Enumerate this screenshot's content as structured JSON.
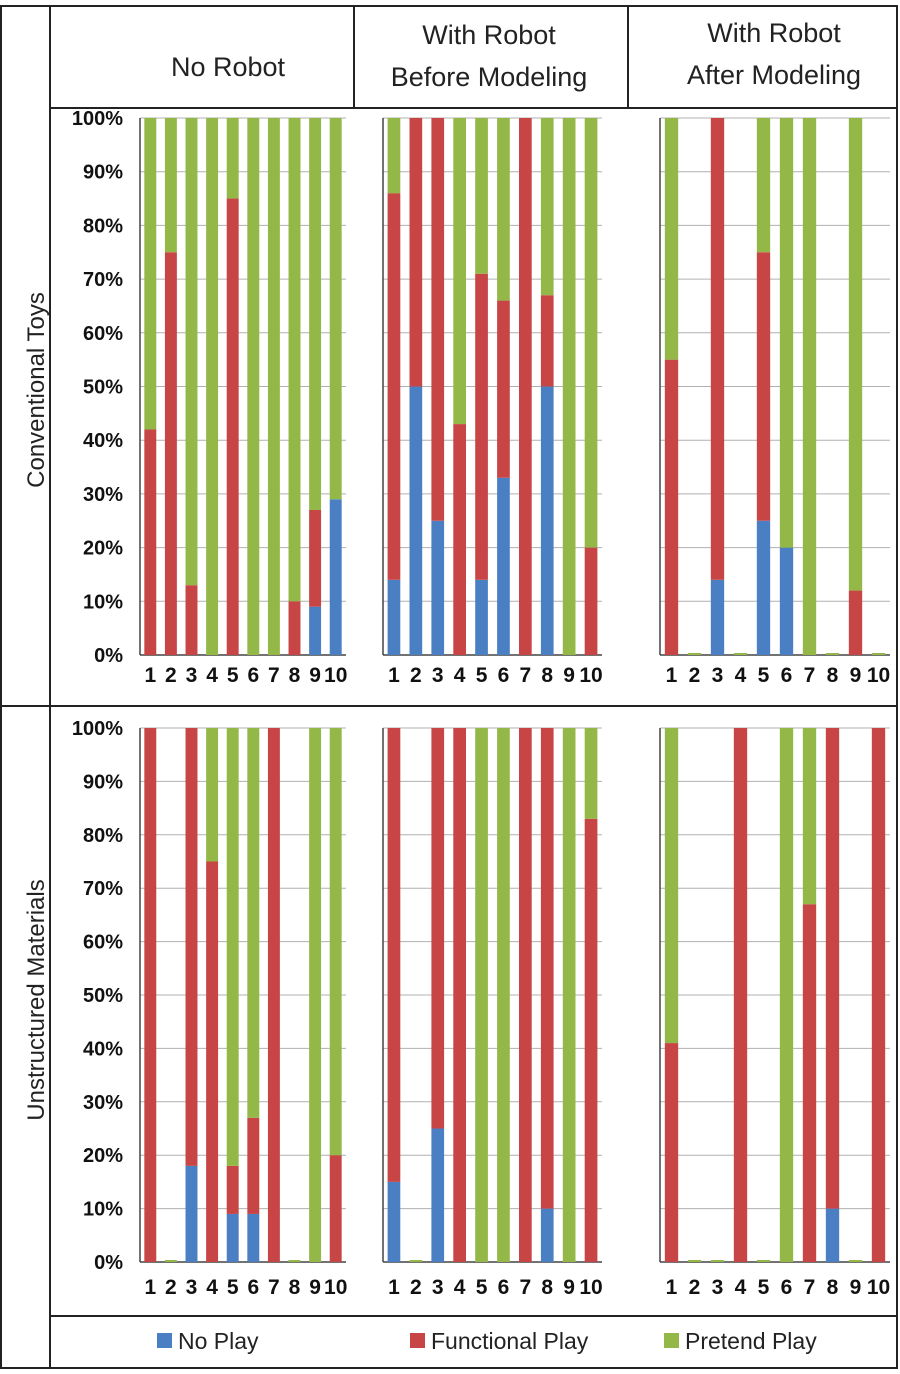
{
  "colors": {
    "no_play": "#4a7fc4",
    "functional_play": "#c84545",
    "pretend_play": "#93b847"
  },
  "column_headers": [
    [
      "No Robot"
    ],
    [
      "With Robot",
      "Before Modeling"
    ],
    [
      "With Robot",
      "After Modeling"
    ]
  ],
  "row_labels": [
    "Conventional Toys",
    "Unstructured Materials"
  ],
  "y_ticks": [
    "0%",
    "10%",
    "20%",
    "30%",
    "40%",
    "50%",
    "60%",
    "70%",
    "80%",
    "90%",
    "100%"
  ],
  "x_ticks": [
    "1",
    "2",
    "3",
    "4",
    "5",
    "6",
    "7",
    "8",
    "9",
    "10"
  ],
  "legend": [
    "No Play",
    "Functional Play",
    "Pretend Play"
  ],
  "chart_data": [
    {
      "type": "bar",
      "stacked": true,
      "row": "Conventional Toys",
      "column": "No Robot",
      "categories": [
        "1",
        "2",
        "3",
        "4",
        "5",
        "6",
        "7",
        "8",
        "9",
        "10"
      ],
      "ylim": [
        0,
        100
      ],
      "series": [
        {
          "name": "No Play",
          "values": [
            0,
            0,
            0,
            0,
            0,
            0,
            0,
            0,
            9,
            29
          ]
        },
        {
          "name": "Functional Play",
          "values": [
            42,
            75,
            13,
            0,
            85,
            0,
            0,
            10,
            18,
            0
          ]
        },
        {
          "name": "Pretend Play",
          "values": [
            58,
            25,
            87,
            100,
            15,
            100,
            100,
            90,
            73,
            71
          ]
        }
      ]
    },
    {
      "type": "bar",
      "stacked": true,
      "row": "Conventional Toys",
      "column": "With Robot Before Modeling",
      "categories": [
        "1",
        "2",
        "3",
        "4",
        "5",
        "6",
        "7",
        "8",
        "9",
        "10"
      ],
      "ylim": [
        0,
        100
      ],
      "series": [
        {
          "name": "No Play",
          "values": [
            14,
            50,
            25,
            0,
            14,
            33,
            0,
            50,
            0,
            0
          ]
        },
        {
          "name": "Functional Play",
          "values": [
            72,
            50,
            75,
            43,
            57,
            33,
            100,
            17,
            0,
            20
          ]
        },
        {
          "name": "Pretend Play",
          "values": [
            14,
            0,
            0,
            57,
            29,
            34,
            0,
            33,
            100,
            80
          ]
        }
      ]
    },
    {
      "type": "bar",
      "stacked": true,
      "row": "Conventional Toys",
      "column": "With Robot After Modeling",
      "categories": [
        "1",
        "2",
        "3",
        "4",
        "5",
        "6",
        "7",
        "8",
        "9",
        "10"
      ],
      "ylim": [
        0,
        100
      ],
      "series": [
        {
          "name": "No Play",
          "values": [
            0,
            0,
            14,
            0,
            25,
            20,
            0,
            0,
            0,
            0
          ]
        },
        {
          "name": "Functional Play",
          "values": [
            55,
            0,
            86,
            0,
            50,
            0,
            0,
            0,
            12,
            0
          ]
        },
        {
          "name": "Pretend Play",
          "values": [
            45,
            0,
            0,
            0,
            25,
            80,
            100,
            0,
            88,
            0
          ]
        }
      ]
    },
    {
      "type": "bar",
      "stacked": true,
      "row": "Unstructured Materials",
      "column": "No Robot",
      "categories": [
        "1",
        "2",
        "3",
        "4",
        "5",
        "6",
        "7",
        "8",
        "9",
        "10"
      ],
      "ylim": [
        0,
        100
      ],
      "series": [
        {
          "name": "No Play",
          "values": [
            0,
            0,
            18,
            0,
            9,
            9,
            0,
            0,
            0,
            0
          ]
        },
        {
          "name": "Functional Play",
          "values": [
            100,
            0,
            82,
            75,
            9,
            18,
            100,
            0,
            0,
            20
          ]
        },
        {
          "name": "Pretend Play",
          "values": [
            0,
            0,
            0,
            25,
            82,
            73,
            0,
            0,
            100,
            80
          ]
        }
      ]
    },
    {
      "type": "bar",
      "stacked": true,
      "row": "Unstructured Materials",
      "column": "With Robot Before Modeling",
      "categories": [
        "1",
        "2",
        "3",
        "4",
        "5",
        "6",
        "7",
        "8",
        "9",
        "10"
      ],
      "ylim": [
        0,
        100
      ],
      "series": [
        {
          "name": "No Play",
          "values": [
            15,
            0,
            25,
            0,
            0,
            0,
            0,
            10,
            0,
            0
          ]
        },
        {
          "name": "Functional Play",
          "values": [
            85,
            0,
            75,
            100,
            0,
            0,
            100,
            90,
            0,
            83
          ]
        },
        {
          "name": "Pretend Play",
          "values": [
            0,
            0,
            0,
            0,
            100,
            100,
            0,
            0,
            100,
            17
          ]
        }
      ]
    },
    {
      "type": "bar",
      "stacked": true,
      "row": "Unstructured Materials",
      "column": "With Robot After Modeling",
      "categories": [
        "1",
        "2",
        "3",
        "4",
        "5",
        "6",
        "7",
        "8",
        "9",
        "10"
      ],
      "ylim": [
        0,
        100
      ],
      "series": [
        {
          "name": "No Play",
          "values": [
            0,
            0,
            0,
            0,
            0,
            0,
            0,
            10,
            0,
            0
          ]
        },
        {
          "name": "Functional Play",
          "values": [
            41,
            0,
            0,
            100,
            0,
            0,
            67,
            90,
            0,
            100
          ]
        },
        {
          "name": "Pretend Play",
          "values": [
            59,
            0,
            0,
            0,
            0,
            100,
            33,
            0,
            0,
            0
          ]
        }
      ]
    }
  ]
}
